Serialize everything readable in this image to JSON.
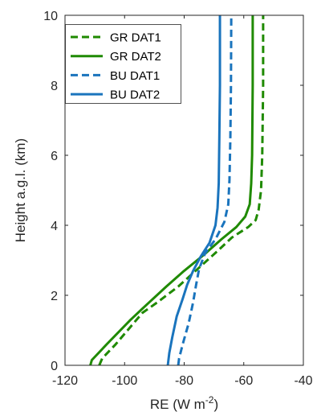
{
  "chart_data": {
    "type": "line",
    "xlabel": "RE (W m",
    "xlabel_sup": "-2",
    "xlabel_close": ")",
    "ylabel": "Height a.g.l. (km)",
    "xlim": [
      -120,
      -40
    ],
    "ylim": [
      0,
      10
    ],
    "xticks": [
      -120,
      -100,
      -80,
      -60,
      -40
    ],
    "yticks": [
      0,
      2,
      4,
      6,
      8,
      10
    ],
    "grid": false,
    "legend_position": "top-left",
    "series": [
      {
        "name": "GR DAT1",
        "color": "#1f8a00",
        "dash": "dashed",
        "points": [
          [
            -108.5,
            0.0
          ],
          [
            -107.5,
            0.2
          ],
          [
            -103.0,
            0.6
          ],
          [
            -97.0,
            1.2
          ],
          [
            -94.0,
            1.5
          ],
          [
            -89.0,
            1.8
          ],
          [
            -82.0,
            2.25
          ],
          [
            -75.5,
            2.75
          ],
          [
            -69.0,
            3.25
          ],
          [
            -64.0,
            3.65
          ],
          [
            -58.5,
            3.95
          ],
          [
            -56.0,
            4.15
          ],
          [
            -55.0,
            4.45
          ],
          [
            -54.2,
            5.0
          ],
          [
            -53.8,
            6.0
          ],
          [
            -53.5,
            8.0
          ],
          [
            -53.5,
            10.0
          ]
        ]
      },
      {
        "name": "GR DAT2",
        "color": "#1f8a00",
        "dash": "solid",
        "points": [
          [
            -111.5,
            0.0
          ],
          [
            -111.0,
            0.15
          ],
          [
            -106.0,
            0.6
          ],
          [
            -98.0,
            1.3
          ],
          [
            -93.0,
            1.7
          ],
          [
            -86.0,
            2.25
          ],
          [
            -80.0,
            2.7
          ],
          [
            -73.5,
            3.15
          ],
          [
            -67.5,
            3.6
          ],
          [
            -62.5,
            3.95
          ],
          [
            -59.5,
            4.25
          ],
          [
            -58.0,
            4.6
          ],
          [
            -57.5,
            5.2
          ],
          [
            -57.2,
            6.0
          ],
          [
            -57.0,
            8.0
          ],
          [
            -57.0,
            10.0
          ]
        ]
      },
      {
        "name": "BU DAT1",
        "color": "#1a74bd",
        "dash": "dashed",
        "points": [
          [
            -82.0,
            0.0
          ],
          [
            -81.7,
            0.2
          ],
          [
            -80.5,
            0.6
          ],
          [
            -78.5,
            1.2
          ],
          [
            -77.0,
            1.8
          ],
          [
            -76.0,
            2.3
          ],
          [
            -75.0,
            2.75
          ],
          [
            -73.0,
            3.2
          ],
          [
            -69.5,
            3.6
          ],
          [
            -66.5,
            4.1
          ],
          [
            -65.2,
            4.6
          ],
          [
            -64.8,
            5.3
          ],
          [
            -64.5,
            6.5
          ],
          [
            -64.3,
            8.0
          ],
          [
            -64.2,
            10.0
          ]
        ]
      },
      {
        "name": "BU DAT2",
        "color": "#1a74bd",
        "dash": "solid",
        "points": [
          [
            -85.5,
            0.0
          ],
          [
            -85.0,
            0.35
          ],
          [
            -84.0,
            0.8
          ],
          [
            -82.5,
            1.4
          ],
          [
            -80.5,
            1.9
          ],
          [
            -79.0,
            2.3
          ],
          [
            -77.0,
            2.7
          ],
          [
            -74.5,
            3.1
          ],
          [
            -71.5,
            3.5
          ],
          [
            -69.5,
            4.0
          ],
          [
            -68.8,
            4.5
          ],
          [
            -68.4,
            5.2
          ],
          [
            -68.2,
            6.5
          ],
          [
            -68.0,
            8.0
          ],
          [
            -68.0,
            10.0
          ]
        ]
      }
    ]
  }
}
